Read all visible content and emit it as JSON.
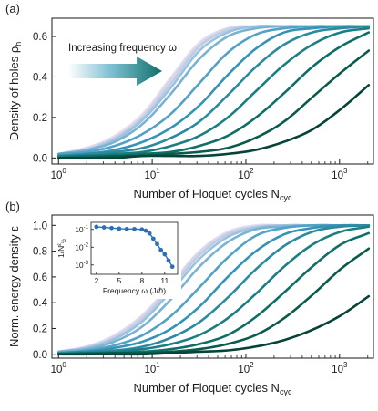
{
  "chart_data": [
    {
      "type": "line",
      "panel_label": "(a)",
      "ylabel": "Density of holes ρ",
      "ylabel_sub": "h",
      "xlabel": "Number of Floquet cycles N",
      "xlabel_sub": "cyc",
      "xscale": "log",
      "xlim": [
        0.85,
        2300
      ],
      "ylim": [
        -0.03,
        0.69
      ],
      "x_ticks": [
        1,
        10,
        100,
        1000
      ],
      "x_tick_labels": [
        "10",
        "10",
        "10",
        "10"
      ],
      "x_tick_label_exponents": [
        "0",
        "1",
        "2",
        "3"
      ],
      "y_ticks": [
        0.0,
        0.2,
        0.4,
        0.6
      ],
      "y_tick_labels": [
        "0.0",
        "0.2",
        "0.4",
        "0.6"
      ],
      "annotation": "Increasing frequency ω",
      "colors": [
        "#e9dded",
        "#d5d5eb",
        "#bdcde6",
        "#9cc3de",
        "#79b2d2",
        "#53a2c6",
        "#3593b6",
        "#2b8a9f",
        "#1a7f83",
        "#0f6f67",
        "#0a5b4c",
        "#06443a"
      ],
      "x": [
        1,
        2,
        4,
        8,
        16,
        32,
        64,
        128,
        256,
        512,
        1024,
        2048
      ],
      "series": [
        {
          "values": [
            0.02,
            0.05,
            0.11,
            0.22,
            0.4,
            0.57,
            0.64,
            0.65,
            0.65,
            0.65,
            0.65,
            0.65
          ]
        },
        {
          "values": [
            0.02,
            0.05,
            0.1,
            0.21,
            0.39,
            0.56,
            0.64,
            0.65,
            0.65,
            0.65,
            0.65,
            0.65
          ]
        },
        {
          "values": [
            0.02,
            0.04,
            0.1,
            0.2,
            0.37,
            0.55,
            0.63,
            0.65,
            0.65,
            0.65,
            0.65,
            0.65
          ]
        },
        {
          "values": [
            0.02,
            0.04,
            0.09,
            0.19,
            0.35,
            0.53,
            0.62,
            0.65,
            0.65,
            0.65,
            0.65,
            0.65
          ]
        },
        {
          "values": [
            0.02,
            0.04,
            0.08,
            0.17,
            0.32,
            0.49,
            0.6,
            0.64,
            0.65,
            0.65,
            0.65,
            0.65
          ]
        },
        {
          "values": [
            0.02,
            0.03,
            0.06,
            0.12,
            0.22,
            0.37,
            0.52,
            0.61,
            0.64,
            0.65,
            0.65,
            0.65
          ]
        },
        {
          "values": [
            0.01,
            0.02,
            0.04,
            0.08,
            0.15,
            0.26,
            0.41,
            0.54,
            0.62,
            0.64,
            0.65,
            0.65
          ]
        },
        {
          "values": [
            0.01,
            0.02,
            0.03,
            0.05,
            0.1,
            0.18,
            0.31,
            0.45,
            0.56,
            0.62,
            0.64,
            0.65
          ]
        },
        {
          "values": [
            0.01,
            0.01,
            0.02,
            0.03,
            0.06,
            0.11,
            0.2,
            0.33,
            0.46,
            0.56,
            0.62,
            0.64
          ]
        },
        {
          "values": [
            0.0,
            0.01,
            0.01,
            0.02,
            0.03,
            0.06,
            0.11,
            0.2,
            0.32,
            0.45,
            0.55,
            0.62
          ]
        },
        {
          "values": [
            0.0,
            0.0,
            0.01,
            0.01,
            0.02,
            0.03,
            0.05,
            0.1,
            0.18,
            0.3,
            0.42,
            0.53
          ]
        },
        {
          "values": [
            0.0,
            0.0,
            0.0,
            0.01,
            0.01,
            0.01,
            0.02,
            0.04,
            0.08,
            0.14,
            0.24,
            0.36
          ]
        }
      ]
    },
    {
      "type": "line",
      "panel_label": "(b)",
      "ylabel": "Norm. energy density ε",
      "xlabel": "Number of Floquet cycles N",
      "xlabel_sub": "cyc",
      "xscale": "log",
      "xlim": [
        0.85,
        2300
      ],
      "ylim": [
        -0.03,
        1.08
      ],
      "x_ticks": [
        1,
        10,
        100,
        1000
      ],
      "x_tick_labels": [
        "10",
        "10",
        "10",
        "10"
      ],
      "x_tick_label_exponents": [
        "0",
        "1",
        "2",
        "3"
      ],
      "y_ticks": [
        0.0,
        0.2,
        0.4,
        0.6,
        0.8,
        1.0
      ],
      "y_tick_labels": [
        "0.0",
        "0.2",
        "0.4",
        "0.6",
        "0.8",
        "1.0"
      ],
      "colors": [
        "#e9dded",
        "#d5d5eb",
        "#bdcde6",
        "#9cc3de",
        "#79b2d2",
        "#53a2c6",
        "#3593b6",
        "#2b8a9f",
        "#1a7f83",
        "#0f6f67",
        "#0a5b4c",
        "#06443a"
      ],
      "x": [
        1,
        2,
        4,
        8,
        16,
        32,
        64,
        128,
        256,
        512,
        1024,
        2048
      ],
      "series": [
        {
          "values": [
            0.02,
            0.06,
            0.15,
            0.31,
            0.55,
            0.8,
            0.95,
            1.0,
            1.0,
            1.0,
            1.0,
            1.0
          ]
        },
        {
          "values": [
            0.02,
            0.06,
            0.14,
            0.3,
            0.54,
            0.79,
            0.94,
            0.99,
            1.0,
            1.0,
            1.0,
            1.0
          ]
        },
        {
          "values": [
            0.02,
            0.05,
            0.13,
            0.28,
            0.52,
            0.77,
            0.93,
            0.99,
            1.0,
            1.0,
            1.0,
            1.0
          ]
        },
        {
          "values": [
            0.02,
            0.05,
            0.12,
            0.26,
            0.49,
            0.74,
            0.91,
            0.98,
            1.0,
            1.0,
            1.0,
            1.0
          ]
        },
        {
          "values": [
            0.02,
            0.04,
            0.1,
            0.22,
            0.43,
            0.68,
            0.87,
            0.97,
            0.99,
            1.0,
            1.0,
            1.0
          ]
        },
        {
          "values": [
            0.01,
            0.03,
            0.07,
            0.15,
            0.3,
            0.52,
            0.75,
            0.92,
            0.98,
            1.0,
            1.0,
            1.0
          ]
        },
        {
          "values": [
            0.01,
            0.02,
            0.05,
            0.1,
            0.2,
            0.37,
            0.6,
            0.8,
            0.93,
            0.98,
            1.0,
            1.0
          ]
        },
        {
          "values": [
            0.01,
            0.02,
            0.03,
            0.06,
            0.13,
            0.25,
            0.44,
            0.66,
            0.84,
            0.95,
            0.99,
            1.0
          ]
        },
        {
          "values": [
            0.0,
            0.01,
            0.02,
            0.04,
            0.08,
            0.15,
            0.28,
            0.47,
            0.68,
            0.85,
            0.95,
            0.99
          ]
        },
        {
          "values": [
            0.0,
            0.01,
            0.01,
            0.02,
            0.04,
            0.08,
            0.15,
            0.29,
            0.48,
            0.68,
            0.85,
            0.94
          ]
        },
        {
          "values": [
            0.0,
            0.0,
            0.01,
            0.01,
            0.02,
            0.04,
            0.08,
            0.15,
            0.28,
            0.46,
            0.66,
            0.82
          ]
        },
        {
          "values": [
            0.0,
            0.0,
            0.0,
            0.0,
            0.01,
            0.02,
            0.03,
            0.06,
            0.11,
            0.19,
            0.3,
            0.45
          ]
        }
      ],
      "inset": {
        "type": "line",
        "ylabel": "1/N",
        "ylabel_sup": "ε",
        "ylabel_sub": "½",
        "xlabel": "Frequency ω (J/ℏ)",
        "yscale": "log",
        "xlim": [
          1.3,
          12.7
        ],
        "ylim": [
          0.0003,
          0.25
        ],
        "x_ticks": [
          2,
          5,
          8,
          11
        ],
        "x_tick_labels": [
          "2",
          "5",
          "8",
          "11"
        ],
        "y_ticks": [
          0.1,
          0.01,
          0.001
        ],
        "y_tick_labels": [
          "10",
          "10",
          "10"
        ],
        "y_tick_label_exponents": [
          "-1",
          "-2",
          "-3"
        ],
        "color": "#2f6fb5",
        "x": [
          2,
          3,
          4,
          5,
          6,
          7,
          8,
          8.5,
          9,
          9.5,
          10,
          10.5,
          11,
          11.5,
          12
        ],
        "values": [
          0.14,
          0.13,
          0.12,
          0.11,
          0.105,
          0.105,
          0.1,
          0.085,
          0.06,
          0.03,
          0.015,
          0.007,
          0.004,
          0.0018,
          0.0008
        ]
      }
    }
  ]
}
